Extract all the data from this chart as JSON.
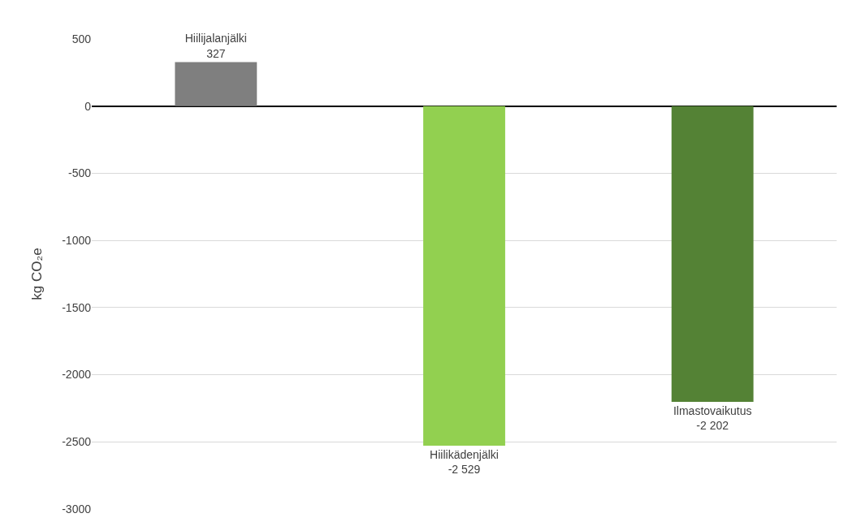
{
  "chart_data": {
    "type": "bar",
    "ylabel": "kg CO₂e",
    "categories": [
      "Hiilijalanjälki",
      "Hiilikädenjälki",
      "Ilmastovaikutus"
    ],
    "values": [
      327,
      -2529,
      -2202
    ],
    "value_labels": [
      "327",
      "-2 529",
      "-2 202"
    ],
    "colors": [
      "#7f7f7f",
      "#92d050",
      "#548235"
    ],
    "ylim": [
      -3000,
      500
    ],
    "yticks": [
      -3000,
      -2500,
      -2000,
      -1500,
      -1000,
      -500,
      0,
      500
    ],
    "grid": "y",
    "tick_labels": "y"
  }
}
